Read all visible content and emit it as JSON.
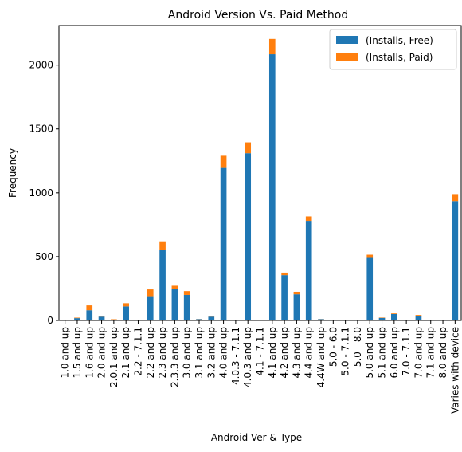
{
  "chart_data": {
    "type": "bar",
    "stacked": true,
    "title": "Android Version Vs. Paid Method",
    "xlabel": "Android Ver & Type",
    "ylabel": "Frequency",
    "ylim": [
      0,
      2310
    ],
    "yticks": [
      0,
      500,
      1000,
      1500,
      2000
    ],
    "legend_position": "top-right",
    "categories": [
      "1.0 and up",
      "1.5 and up",
      "1.6 and up",
      "2.0 and up",
      "2.0.1 and up",
      "2.1 and up",
      "2.2 - 7.1.1",
      "2.2 and up",
      "2.3 and up",
      "2.3.3 and up",
      "3.0 and up",
      "3.1 and up",
      "3.2 and up",
      "4.0 and up",
      "4.0.3 - 7.1.1",
      "4.0.3 and up",
      "4.1 - 7.1.1",
      "4.1 and up",
      "4.2 and up",
      "4.3 and up",
      "4.4 and up",
      "4.4W and up",
      "5.0 - 6.0",
      "5.0 - 7.1.1",
      "5.0 - 8.0",
      "5.0 and up",
      "5.1 and up",
      "6.0 and up",
      "7.0 - 7.1.1",
      "7.0 and up",
      "7.1 and up",
      "8.0 and up",
      "Varies with device"
    ],
    "series": [
      {
        "name": "(Installs, Free)",
        "color": "#1f77b4",
        "values": [
          2,
          18,
          80,
          30,
          7,
          110,
          1,
          190,
          550,
          245,
          200,
          10,
          30,
          1195,
          2,
          1310,
          3,
          2085,
          355,
          205,
          780,
          10,
          2,
          3,
          1,
          490,
          20,
          50,
          1,
          35,
          4,
          5,
          935
        ]
      },
      {
        "name": "(Installs, Paid)",
        "color": "#ff7f0e",
        "values": [
          0,
          4,
          38,
          5,
          3,
          25,
          0,
          53,
          70,
          27,
          30,
          1,
          5,
          95,
          0,
          85,
          0,
          120,
          20,
          20,
          35,
          1,
          0,
          0,
          0,
          25,
          3,
          5,
          0,
          8,
          0,
          0,
          55
        ]
      }
    ]
  }
}
